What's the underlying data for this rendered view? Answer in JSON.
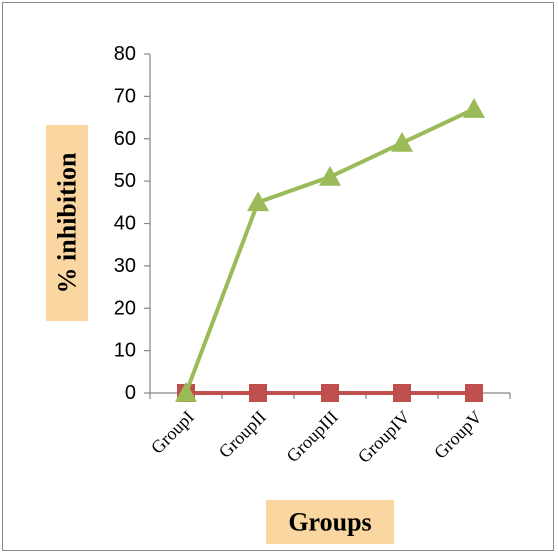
{
  "chart_data": {
    "type": "line",
    "categories": [
      "GroupI",
      "GroupII",
      "GroupIII",
      "GroupIV",
      "GroupV"
    ],
    "series": [
      {
        "values": [
          0,
          0,
          0,
          0,
          0
        ],
        "color": "#c0504d",
        "marker": "square"
      },
      {
        "values": [
          0,
          45,
          51,
          59,
          67
        ],
        "color": "#9bbb59",
        "marker": "triangle"
      }
    ],
    "title": "",
    "xlabel": "Groups",
    "ylabel": "% inhibition",
    "ylim": [
      0,
      80
    ],
    "yticks": [
      0,
      10,
      20,
      30,
      40,
      50,
      60,
      70,
      80
    ],
    "grid": false,
    "legend": false,
    "label_background": "#fad7a0"
  }
}
